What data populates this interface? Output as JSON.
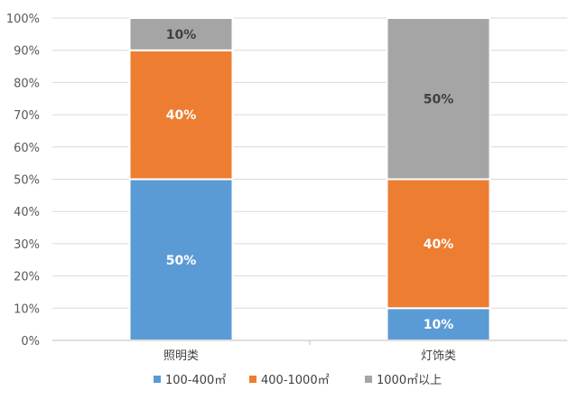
{
  "chart_data": {
    "type": "bar",
    "stacked": true,
    "categories": [
      "照明类",
      "灯饰类"
    ],
    "series": [
      {
        "name": "100-400㎡",
        "color": "#5B9BD5",
        "values": [
          50,
          10
        ],
        "labels": [
          "50%",
          "10%"
        ]
      },
      {
        "name": "400-1000㎡",
        "color": "#ED7D31",
        "values": [
          40,
          40
        ],
        "labels": [
          "40%",
          "40%"
        ]
      },
      {
        "name": "1000㎡以上",
        "color": "#A5A5A5",
        "values": [
          10,
          50
        ],
        "labels": [
          "10%",
          "50%"
        ]
      }
    ],
    "y_ticks": [
      "0%",
      "10%",
      "20%",
      "30%",
      "40%",
      "50%",
      "60%",
      "70%",
      "80%",
      "90%",
      "100%"
    ],
    "ylim": [
      0,
      100
    ],
    "grid": true,
    "legend_position": "bottom",
    "title": "",
    "xlabel": "",
    "ylabel": ""
  }
}
